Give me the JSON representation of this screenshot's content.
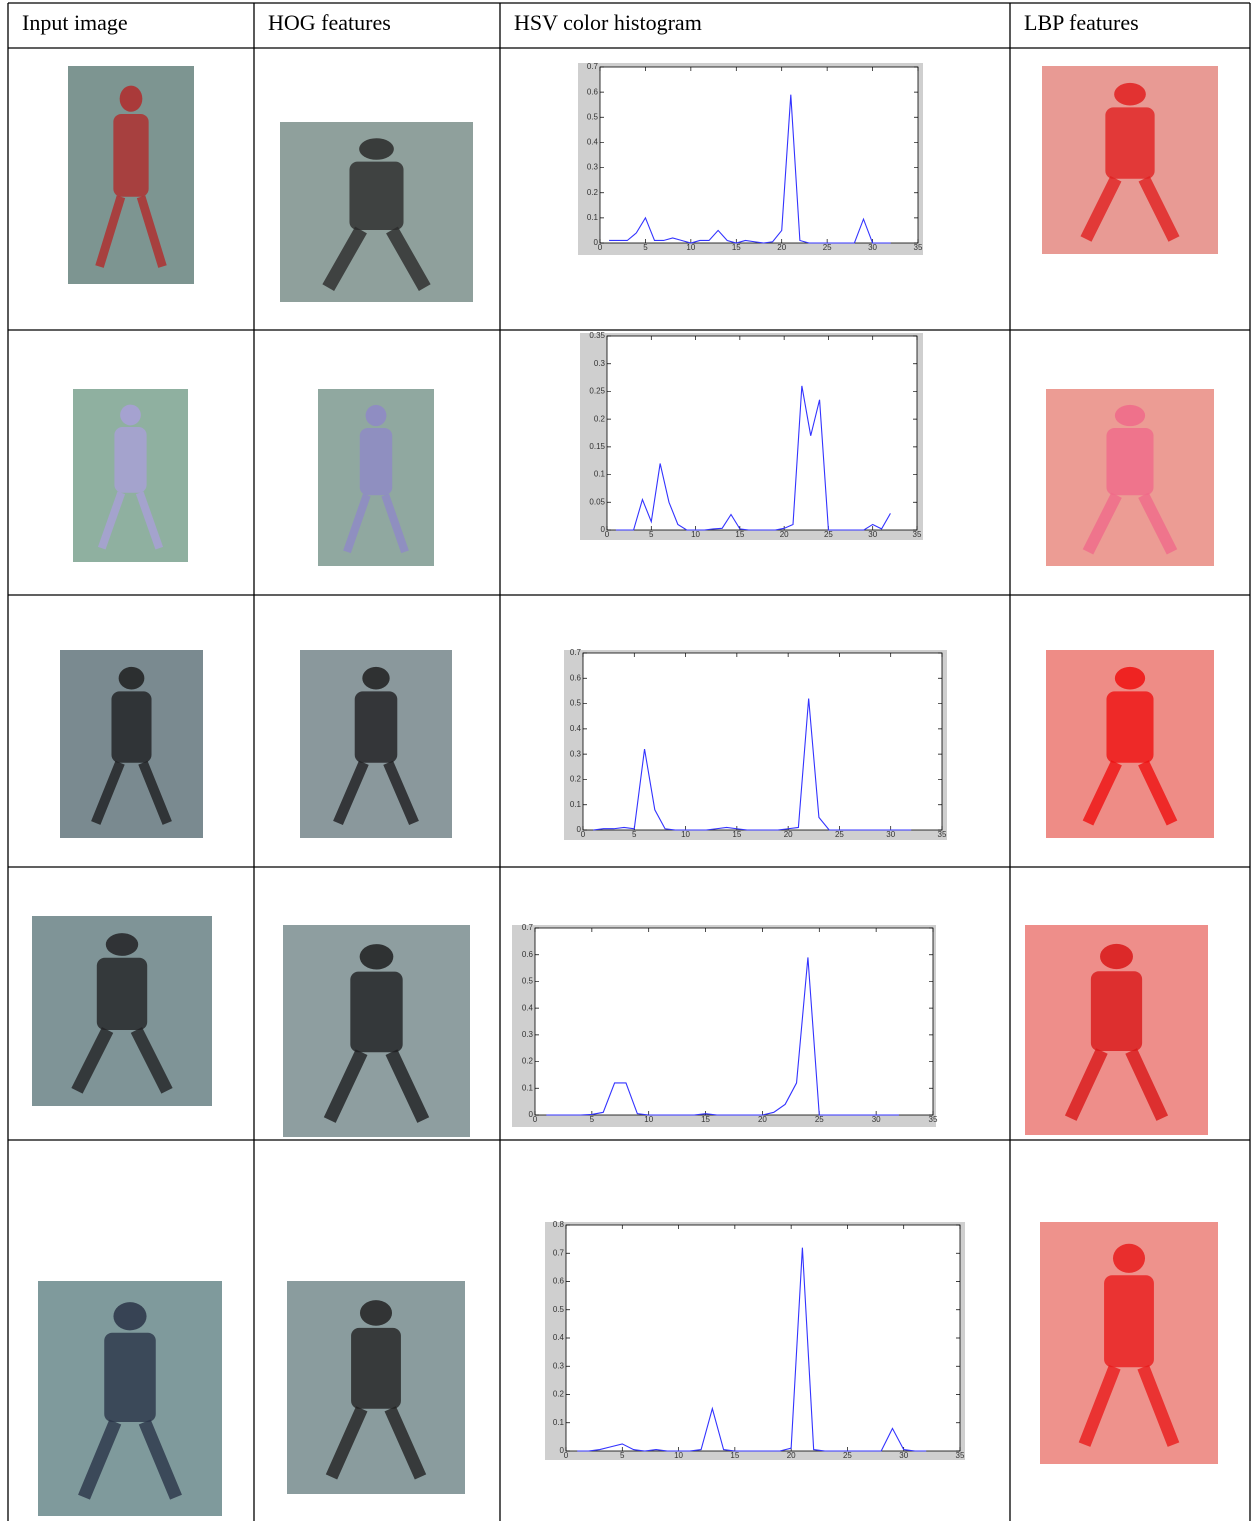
{
  "table": {
    "headers": [
      "Input image",
      "HOG features",
      "HSV color histogram",
      "LBP features"
    ],
    "histograms": [
      {
        "type": "line",
        "color": "#3333ff",
        "xlim": [
          0,
          35
        ],
        "xticks": [
          0,
          5,
          10,
          15,
          20,
          25,
          30,
          35
        ],
        "ylim": [
          0,
          0.7
        ],
        "yticks": [
          0,
          0.1,
          0.2,
          0.3,
          0.4,
          0.5,
          0.6,
          0.7
        ],
        "x": [
          1,
          2,
          3,
          4,
          5,
          6,
          7,
          8,
          9,
          10,
          11,
          12,
          13,
          14,
          15,
          16,
          17,
          18,
          19,
          20,
          21,
          22,
          23,
          24,
          25,
          26,
          27,
          28,
          29,
          30,
          31,
          32
        ],
        "values": [
          0.01,
          0.01,
          0.01,
          0.04,
          0.1,
          0.01,
          0.01,
          0.02,
          0.01,
          0,
          0.01,
          0.01,
          0.05,
          0.01,
          0,
          0.01,
          0.005,
          0,
          0.005,
          0.05,
          0.59,
          0.01,
          0,
          0,
          0,
          0,
          0,
          0,
          0.095,
          0,
          0,
          0
        ]
      },
      {
        "type": "line",
        "color": "#3333ff",
        "xlim": [
          0,
          35
        ],
        "xticks": [
          0,
          5,
          10,
          15,
          20,
          25,
          30,
          35
        ],
        "ylim": [
          0,
          0.35
        ],
        "yticks": [
          0,
          0.05,
          0.1,
          0.15,
          0.2,
          0.25,
          0.3,
          0.35
        ],
        "x": [
          1,
          2,
          3,
          4,
          5,
          6,
          7,
          8,
          9,
          10,
          11,
          12,
          13,
          14,
          15,
          16,
          17,
          18,
          19,
          20,
          21,
          22,
          23,
          24,
          25,
          26,
          27,
          28,
          29,
          30,
          31,
          32
        ],
        "values": [
          0,
          0,
          0,
          0.055,
          0.015,
          0.12,
          0.05,
          0.01,
          0,
          0,
          0,
          0.002,
          0.003,
          0.028,
          0.002,
          0,
          0,
          0,
          0,
          0.003,
          0.01,
          0.26,
          0.17,
          0.235,
          0,
          0,
          0,
          0,
          0,
          0.01,
          0.002,
          0.03
        ]
      },
      {
        "type": "line",
        "color": "#3333ff",
        "xlim": [
          0,
          35
        ],
        "xticks": [
          0,
          5,
          10,
          15,
          20,
          25,
          30,
          35
        ],
        "ylim": [
          0,
          0.7
        ],
        "yticks": [
          0,
          0.1,
          0.2,
          0.3,
          0.4,
          0.5,
          0.6,
          0.7
        ],
        "x": [
          1,
          2,
          3,
          4,
          5,
          6,
          7,
          8,
          9,
          10,
          11,
          12,
          13,
          14,
          15,
          16,
          17,
          18,
          19,
          20,
          21,
          22,
          23,
          24,
          25,
          26,
          27,
          28,
          29,
          30,
          31,
          32
        ],
        "values": [
          0,
          0.005,
          0.005,
          0.01,
          0.005,
          0.32,
          0.08,
          0.005,
          0,
          0,
          0,
          0,
          0.005,
          0.01,
          0.005,
          0,
          0,
          0,
          0,
          0.005,
          0.01,
          0.52,
          0.05,
          0,
          0,
          0,
          0,
          0,
          0,
          0,
          0,
          0
        ]
      },
      {
        "type": "line",
        "color": "#3333ff",
        "xlim": [
          0,
          35
        ],
        "xticks": [
          0,
          5,
          10,
          15,
          20,
          25,
          30,
          35
        ],
        "ylim": [
          0,
          0.7
        ],
        "yticks": [
          0,
          0.1,
          0.2,
          0.3,
          0.4,
          0.5,
          0.6,
          0.7
        ],
        "x": [
          1,
          2,
          3,
          4,
          5,
          6,
          7,
          8,
          9,
          10,
          11,
          12,
          13,
          14,
          15,
          16,
          17,
          18,
          19,
          20,
          21,
          22,
          23,
          24,
          25,
          26,
          27,
          28,
          29,
          30,
          31,
          32
        ],
        "values": [
          0,
          0,
          0,
          0,
          0.002,
          0.01,
          0.12,
          0.12,
          0.005,
          0,
          0,
          0,
          0,
          0,
          0.005,
          0,
          0,
          0,
          0,
          0,
          0.01,
          0.04,
          0.12,
          0.59,
          0,
          0,
          0,
          0,
          0,
          0,
          0,
          0
        ]
      },
      {
        "type": "line",
        "color": "#3333ff",
        "xlim": [
          0,
          35
        ],
        "xticks": [
          0,
          5,
          10,
          15,
          20,
          25,
          30,
          35
        ],
        "ylim": [
          0,
          0.8
        ],
        "yticks": [
          0,
          0.1,
          0.2,
          0.3,
          0.4,
          0.5,
          0.6,
          0.7,
          0.8
        ],
        "x": [
          1,
          2,
          3,
          4,
          5,
          6,
          7,
          8,
          9,
          10,
          11,
          12,
          13,
          14,
          15,
          16,
          17,
          18,
          19,
          20,
          21,
          22,
          23,
          24,
          25,
          26,
          27,
          28,
          29,
          30,
          31,
          32
        ],
        "values": [
          0,
          0,
          0.005,
          0.015,
          0.025,
          0.005,
          0,
          0.005,
          0,
          0,
          0,
          0.005,
          0.15,
          0.005,
          0,
          0,
          0,
          0,
          0,
          0.01,
          0.72,
          0.005,
          0,
          0,
          0,
          0,
          0,
          0,
          0.08,
          0.005,
          0,
          0
        ]
      }
    ]
  }
}
